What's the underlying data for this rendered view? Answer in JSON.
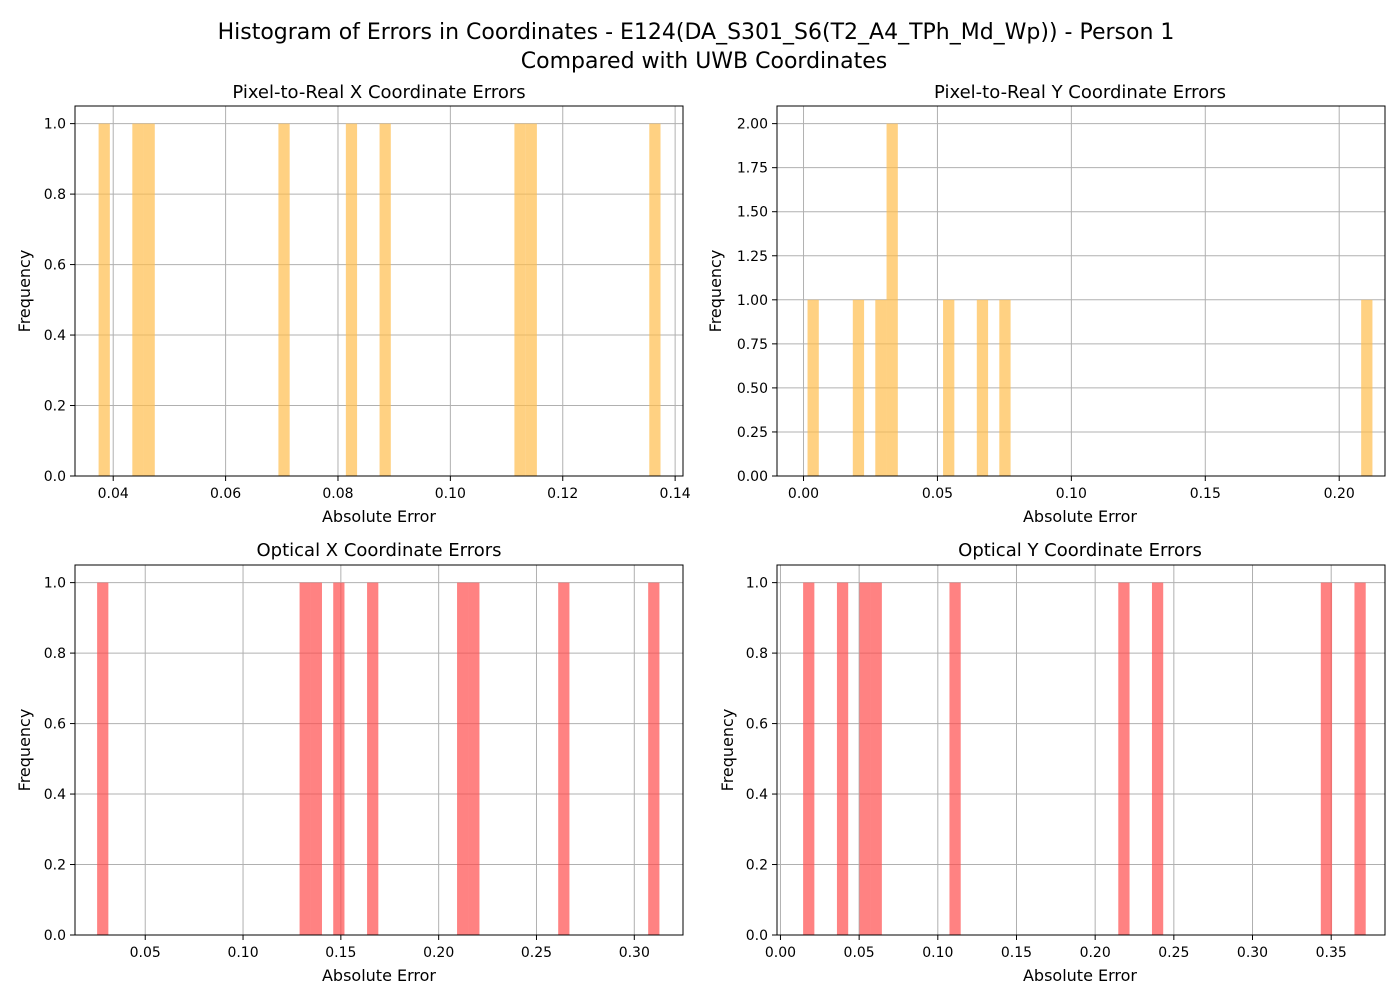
{
  "figure": {
    "title_line1": "Histogram of Errors in Coordinates - E124(DA_S301_S6(T2_A4_TPh_Md_Wp)) - Person 1",
    "title_line2": "Compared with UWB Coordinates"
  },
  "colors": {
    "orange": "#FFBE4D",
    "red": "#FF4D4D",
    "grid": "#B0B0B0",
    "axis": "#000000"
  },
  "chart_data": [
    {
      "type": "bar",
      "title": "Pixel-to-Real X Coordinate Errors",
      "xlabel": "Absolute Error",
      "ylabel": "Frequency",
      "color": "orange",
      "xlim": [
        0.0332,
        0.1414
      ],
      "ylim": [
        0,
        1.05
      ],
      "xticks": [
        0.04,
        0.06,
        0.08,
        0.1,
        0.12,
        0.14
      ],
      "xtick_labels": [
        "0.04",
        "0.06",
        "0.08",
        "0.10",
        "0.12",
        "0.14"
      ],
      "yticks": [
        0,
        0.2,
        0.4,
        0.6,
        0.8,
        1.0
      ],
      "ytick_labels": [
        "0.0",
        "0.2",
        "0.4",
        "0.6",
        "0.8",
        "1.0"
      ],
      "bin_width": 0.002,
      "bins": [
        {
          "x": 0.0374,
          "count": 1
        },
        {
          "x": 0.0434,
          "count": 1
        },
        {
          "x": 0.0454,
          "count": 1
        },
        {
          "x": 0.0694,
          "count": 1
        },
        {
          "x": 0.0814,
          "count": 1
        },
        {
          "x": 0.0874,
          "count": 1
        },
        {
          "x": 0.1114,
          "count": 1
        },
        {
          "x": 0.1134,
          "count": 1
        },
        {
          "x": 0.1354,
          "count": 1
        }
      ]
    },
    {
      "type": "bar",
      "title": "Pixel-to-Real Y Coordinate Errors",
      "xlabel": "Absolute Error",
      "ylabel": "Frequency",
      "color": "orange",
      "xlim": [
        -0.0099,
        0.2171
      ],
      "ylim": [
        0,
        2.1
      ],
      "xticks": [
        0.0,
        0.05,
        0.1,
        0.15,
        0.2
      ],
      "xtick_labels": [
        "0.00",
        "0.05",
        "0.10",
        "0.15",
        "0.20"
      ],
      "yticks": [
        0,
        0.25,
        0.5,
        0.75,
        1.0,
        1.25,
        1.5,
        1.75,
        2.0
      ],
      "ytick_labels": [
        "0.00",
        "0.25",
        "0.50",
        "0.75",
        "1.00",
        "1.25",
        "1.50",
        "1.75",
        "2.00"
      ],
      "bin_width": 0.00421,
      "bins": [
        {
          "x": 0.0015,
          "count": 1
        },
        {
          "x": 0.0184,
          "count": 1
        },
        {
          "x": 0.0268,
          "count": 1
        },
        {
          "x": 0.031,
          "count": 2
        },
        {
          "x": 0.0521,
          "count": 1
        },
        {
          "x": 0.0647,
          "count": 1
        },
        {
          "x": 0.0731,
          "count": 1
        },
        {
          "x": 0.2082,
          "count": 1
        }
      ]
    },
    {
      "type": "bar",
      "title": "Optical X Coordinate Errors",
      "xlabel": "Absolute Error",
      "ylabel": "Frequency",
      "color": "red",
      "xlim": [
        0.0141,
        0.3249
      ],
      "ylim": [
        0,
        1.05
      ],
      "xticks": [
        0.05,
        0.1,
        0.15,
        0.2,
        0.25,
        0.3
      ],
      "xtick_labels": [
        "0.05",
        "0.10",
        "0.15",
        "0.20",
        "0.25",
        "0.30"
      ],
      "yticks": [
        0,
        0.2,
        0.4,
        0.6,
        0.8,
        1.0
      ],
      "ytick_labels": [
        "0.0",
        "0.2",
        "0.4",
        "0.6",
        "0.8",
        "1.0"
      ],
      "bin_width": 0.00575,
      "bins": [
        {
          "x": 0.0254,
          "count": 1
        },
        {
          "x": 0.1289,
          "count": 1
        },
        {
          "x": 0.1346,
          "count": 1
        },
        {
          "x": 0.1461,
          "count": 1
        },
        {
          "x": 0.1634,
          "count": 1
        },
        {
          "x": 0.2094,
          "count": 1
        },
        {
          "x": 0.2151,
          "count": 1
        },
        {
          "x": 0.2611,
          "count": 1
        },
        {
          "x": 0.3071,
          "count": 1
        }
      ]
    },
    {
      "type": "bar",
      "title": "Optical Y Coordinate Errors",
      "xlabel": "Absolute Error",
      "ylabel": "Frequency",
      "color": "red",
      "xlim": [
        -0.0022,
        0.3842
      ],
      "ylim": [
        0,
        1.05
      ],
      "xticks": [
        0.0,
        0.05,
        0.1,
        0.15,
        0.2,
        0.25,
        0.3,
        0.35
      ],
      "xtick_labels": [
        "0.00",
        "0.05",
        "0.10",
        "0.15",
        "0.20",
        "0.25",
        "0.30",
        "0.35"
      ],
      "yticks": [
        0,
        0.2,
        0.4,
        0.6,
        0.8,
        1.0
      ],
      "ytick_labels": [
        "0.0",
        "0.2",
        "0.4",
        "0.6",
        "0.8",
        "1.0"
      ],
      "bin_width": 0.00715,
      "bins": [
        {
          "x": 0.0144,
          "count": 1
        },
        {
          "x": 0.0359,
          "count": 1
        },
        {
          "x": 0.0502,
          "count": 1
        },
        {
          "x": 0.0573,
          "count": 1
        },
        {
          "x": 0.1074,
          "count": 1
        },
        {
          "x": 0.2147,
          "count": 1
        },
        {
          "x": 0.2361,
          "count": 1
        },
        {
          "x": 0.3434,
          "count": 1
        },
        {
          "x": 0.3648,
          "count": 1
        }
      ]
    }
  ]
}
